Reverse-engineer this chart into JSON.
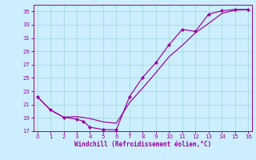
{
  "xlabel": "Windchill (Refroidissement éolien,°C)",
  "background_color": "#cceeff",
  "grid_color": "#aadddd",
  "line_color": "#990099",
  "x_line1": [
    0,
    1,
    2,
    3,
    3.5,
    4,
    5,
    6,
    7,
    8,
    9,
    10,
    11,
    12,
    13,
    14,
    15,
    16
  ],
  "y_line1": [
    22.2,
    20.2,
    19.1,
    18.8,
    18.5,
    17.6,
    17.25,
    17.2,
    22.2,
    25.1,
    27.3,
    30.0,
    32.3,
    32.0,
    34.6,
    35.1,
    35.3,
    35.3
  ],
  "x_line2": [
    0,
    1,
    2,
    3,
    4,
    5,
    6,
    7,
    8,
    9,
    10,
    11,
    12,
    13,
    14,
    15,
    16
  ],
  "y_line2": [
    22.2,
    20.2,
    19.1,
    19.2,
    18.9,
    18.4,
    18.2,
    21.3,
    23.5,
    25.8,
    28.2,
    29.9,
    31.8,
    33.2,
    34.7,
    35.2,
    35.3
  ],
  "xlim": [
    -0.3,
    16.3
  ],
  "ylim": [
    17,
    36
  ],
  "yticks": [
    17,
    19,
    21,
    23,
    25,
    27,
    29,
    31,
    33,
    35
  ],
  "xticks": [
    0,
    1,
    2,
    3,
    4,
    5,
    6,
    7,
    8,
    9,
    10,
    11,
    12,
    13,
    14,
    15,
    16
  ]
}
